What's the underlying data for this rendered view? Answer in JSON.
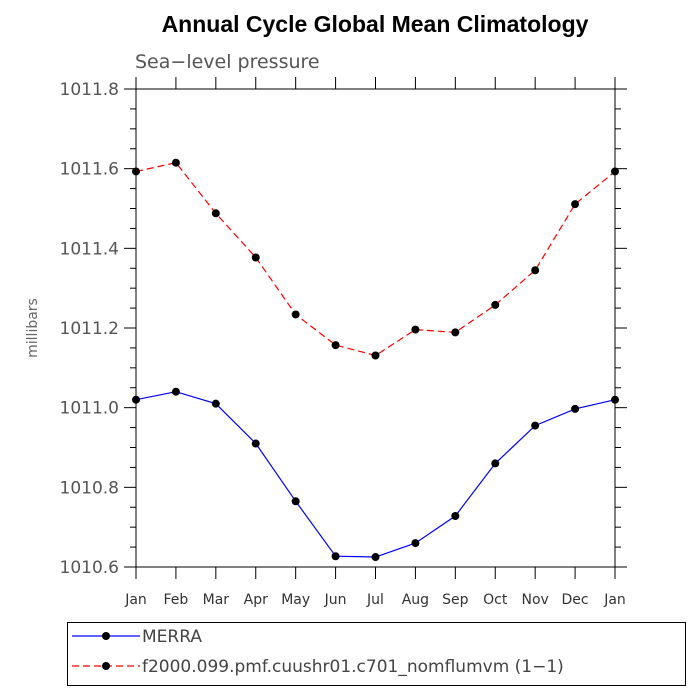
{
  "chart_data": {
    "type": "line",
    "title": "Annual Cycle Global Mean Climatology",
    "subtitle": "Sea−level pressure",
    "ylabel": "millibars",
    "xlabel": "",
    "ylim": [
      1010.6,
      1011.8
    ],
    "yticks": [
      "1010.6",
      "1010.8",
      "1011.0",
      "1011.2",
      "1011.4",
      "1011.6",
      "1011.8"
    ],
    "categories": [
      "Jan",
      "Feb",
      "Mar",
      "Apr",
      "May",
      "Jun",
      "Jul",
      "Aug",
      "Sep",
      "Oct",
      "Nov",
      "Dec",
      "Jan"
    ],
    "grid": false,
    "legend_position": "bottom",
    "series": [
      {
        "name": "MERRA",
        "color": "#0000ff",
        "line_style": "solid",
        "marker": "filled-circle",
        "values": [
          1011.02,
          1011.04,
          1011.01,
          1010.91,
          1010.765,
          1010.627,
          1010.625,
          1010.66,
          1010.728,
          1010.86,
          1010.955,
          1010.997,
          1011.02
        ]
      },
      {
        "name": "f2000.099.pmf.cuushr01.c701_nomflumvm (1−1)",
        "color": "#ff0000",
        "line_style": "dashed",
        "marker": "filled-circle",
        "values": [
          1011.593,
          1011.615,
          1011.488,
          1011.377,
          1011.234,
          1011.157,
          1011.131,
          1011.196,
          1011.189,
          1011.258,
          1011.345,
          1011.511,
          1011.593
        ]
      }
    ]
  }
}
